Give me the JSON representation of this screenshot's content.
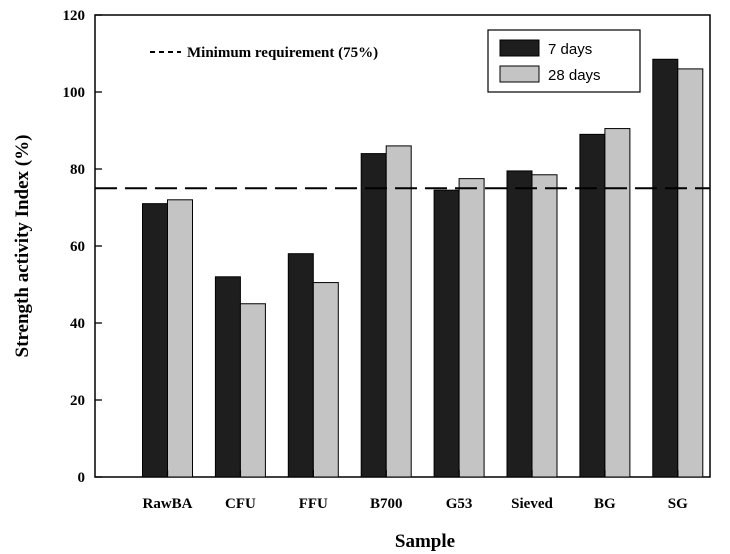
{
  "chart_data": {
    "type": "bar",
    "xlabel": "Sample",
    "ylabel": "Strength activity Index (%)",
    "ylim": [
      0,
      120
    ],
    "yticks": [
      0,
      20,
      40,
      60,
      80,
      100,
      120
    ],
    "categories": [
      "RawBA",
      "CFU",
      "FFU",
      "B700",
      "G53",
      "Sieved",
      "BG",
      "SG"
    ],
    "series": [
      {
        "name": "7 days",
        "color": "#1e1e1e",
        "values": [
          71,
          52,
          58,
          84,
          74.5,
          79.5,
          89,
          108.5
        ]
      },
      {
        "name": "28 days",
        "color": "#c4c4c4",
        "values": [
          72,
          45,
          50.5,
          86,
          77.5,
          78.5,
          90.5,
          106
        ]
      }
    ],
    "reference_line": {
      "value": 75,
      "label": "Minimum requirement (75%)",
      "style": "dashed"
    },
    "legend": {
      "position": "top-right"
    },
    "grid": false
  }
}
